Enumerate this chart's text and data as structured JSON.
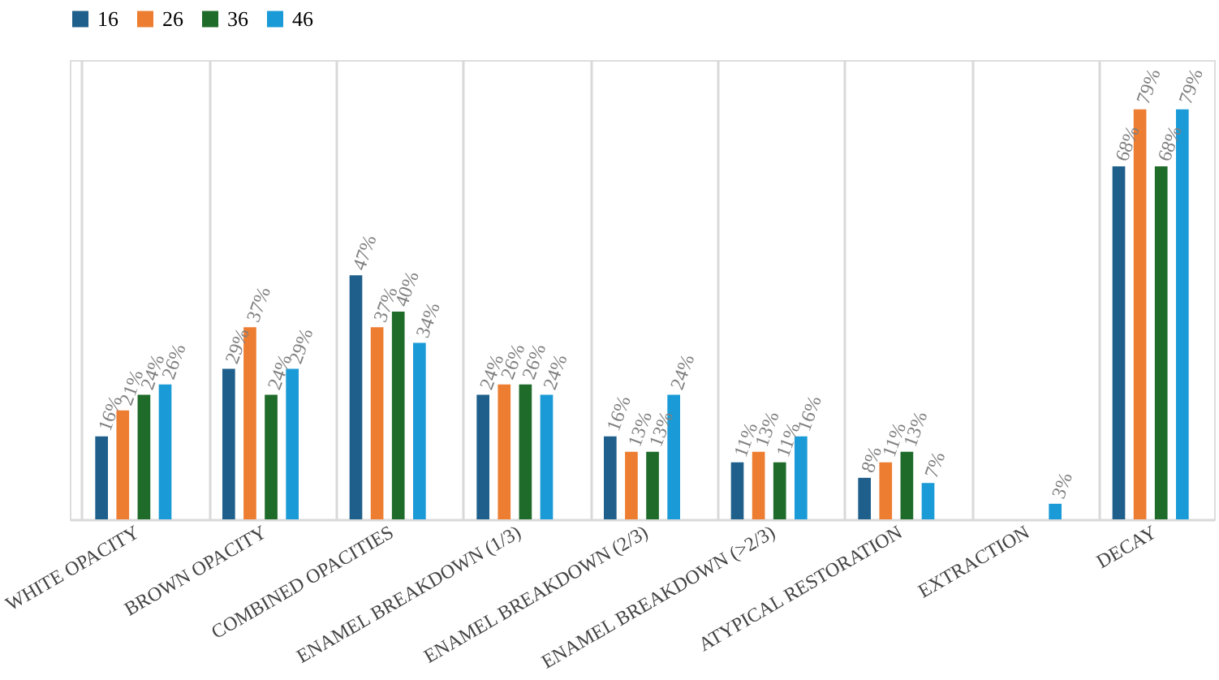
{
  "chart_data": {
    "type": "bar",
    "categories": [
      "WHITE OPACITY",
      "BROWN OPACITY",
      "COMBINED OPACITIES",
      "ENAMEL BREAKDOWN (1/3)",
      "ENAMEL BREAKDOWN (2/3)",
      "ENAMEL BREAKDOWN (>2/3)",
      "ATYPICAL RESTORATION",
      "EXTRACTION",
      "DECAY"
    ],
    "series": [
      {
        "name": "16",
        "color": "#1f5f8b",
        "values": [
          16,
          29,
          47,
          24,
          16,
          11,
          8,
          null,
          68
        ],
        "value_labels": [
          "16%",
          "29%",
          "47%",
          "24%",
          "16%",
          "11%",
          "8%",
          null,
          "68%"
        ]
      },
      {
        "name": "26",
        "color": "#ed7d31",
        "values": [
          21,
          37,
          37,
          26,
          13,
          13,
          11,
          null,
          79
        ],
        "value_labels": [
          "21%",
          "37%",
          "37%",
          "26%",
          "13%",
          "13%",
          "11%",
          null,
          "79%"
        ]
      },
      {
        "name": "36",
        "color": "#1e6b2a",
        "values": [
          24,
          24,
          40,
          26,
          13,
          11,
          13,
          null,
          68
        ],
        "value_labels": [
          "24%",
          "24%",
          "40%",
          "26%",
          "13%",
          "11%",
          "13%",
          null,
          "68%"
        ]
      },
      {
        "name": "46",
        "color": "#1a9ad6",
        "values": [
          26,
          29,
          34,
          24,
          24,
          16,
          7,
          3,
          79
        ],
        "value_labels": [
          "26%",
          "29%",
          "34%",
          "24%",
          "24%",
          "16%",
          "7%",
          "3%",
          "79%"
        ]
      }
    ],
    "grid": "x",
    "legend": "top"
  }
}
